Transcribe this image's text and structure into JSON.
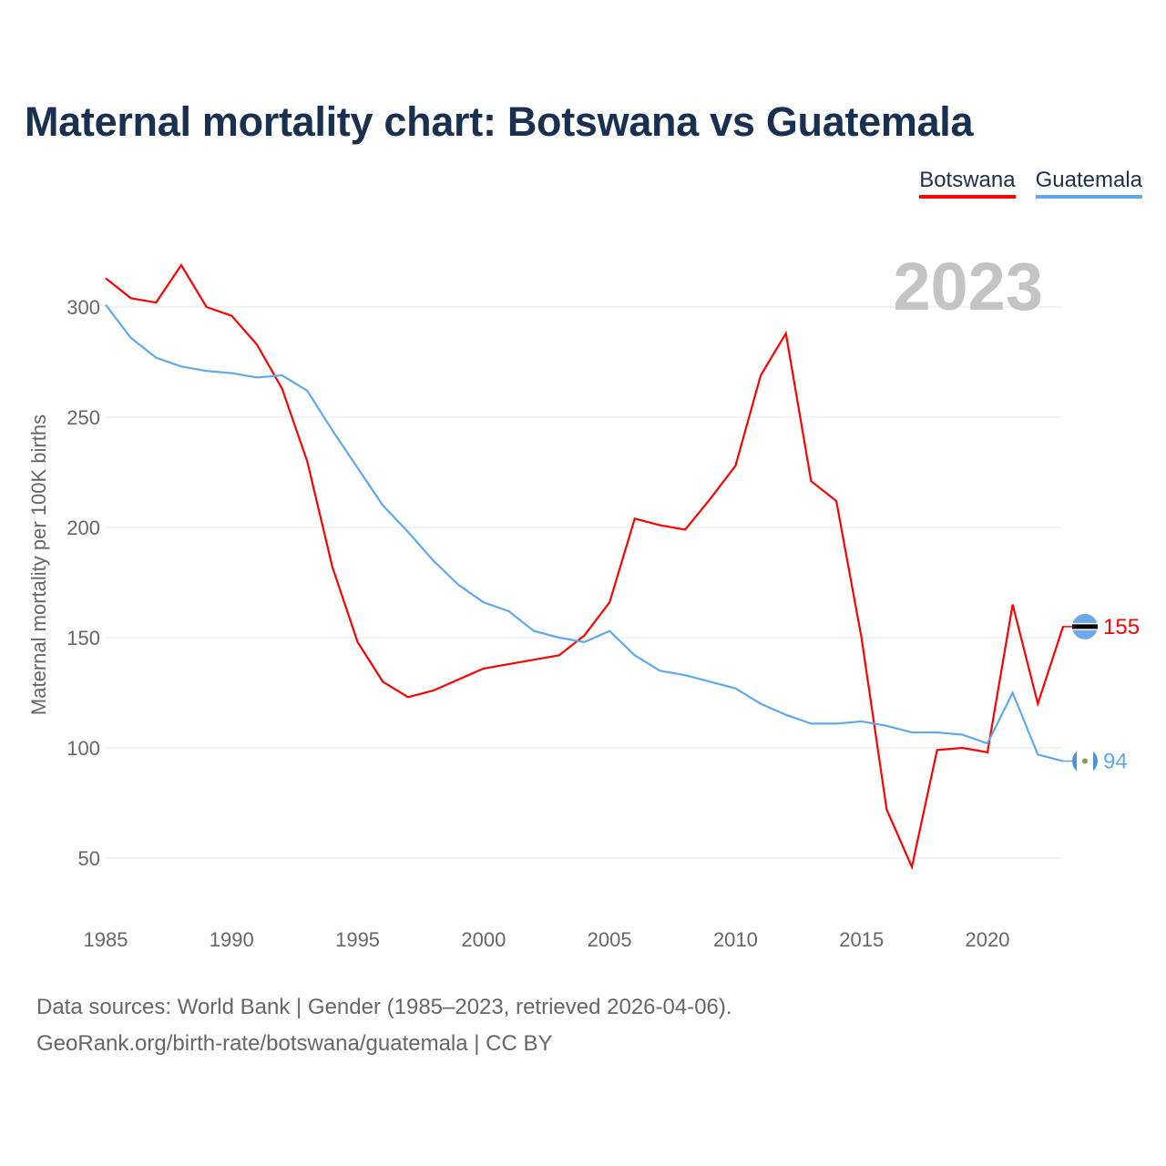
{
  "title": "Maternal mortality chart: Botswana vs Guatemala",
  "legend": [
    "Botswana",
    "Guatemala"
  ],
  "year_label": "2023",
  "footer": {
    "line1": "Data sources: World Bank | Gender (1985–2023, retrieved 2026-04-06).",
    "line2": "GeoRank.org/birth-rate/botswana/guatemala | CC BY"
  },
  "colors": {
    "Botswana": "#ff0000",
    "Guatemala": "#5fa8ee",
    "title": "#1a3050"
  },
  "chart_data": {
    "type": "line",
    "title": "Maternal mortality chart: Botswana vs Guatemala",
    "xlabel": "",
    "ylabel": "Maternal mortality per 100K births",
    "xlim": [
      1985,
      2023
    ],
    "ylim": [
      30,
      320
    ],
    "xticks": [
      1985,
      1990,
      1995,
      2000,
      2005,
      2010,
      2015,
      2020
    ],
    "yticks": [
      50,
      100,
      150,
      200,
      250,
      300
    ],
    "grid": true,
    "legend_position": "top-right",
    "x": [
      1985,
      1986,
      1987,
      1988,
      1989,
      1990,
      1991,
      1992,
      1993,
      1994,
      1995,
      1996,
      1997,
      1998,
      1999,
      2000,
      2001,
      2002,
      2003,
      2004,
      2005,
      2006,
      2007,
      2008,
      2009,
      2010,
      2011,
      2012,
      2013,
      2014,
      2015,
      2016,
      2017,
      2018,
      2019,
      2020,
      2021,
      2022,
      2023
    ],
    "series": [
      {
        "name": "Botswana",
        "end_label": "155",
        "values": [
          313,
          304,
          302,
          319,
          300,
          296,
          283,
          263,
          230,
          182,
          148,
          130,
          123,
          126,
          131,
          136,
          138,
          140,
          142,
          151,
          166,
          204,
          201,
          199,
          213,
          228,
          269,
          288,
          221,
          212,
          150,
          72,
          46,
          99,
          100,
          98,
          165,
          120,
          155
        ]
      },
      {
        "name": "Guatemala",
        "end_label": "94",
        "values": [
          301,
          286,
          277,
          273,
          271,
          270,
          268,
          269,
          262,
          244,
          227,
          210,
          198,
          185,
          174,
          166,
          162,
          153,
          150,
          148,
          153,
          142,
          135,
          133,
          130,
          127,
          120,
          115,
          111,
          111,
          112,
          110,
          107,
          107,
          106,
          102,
          125,
          97,
          94
        ]
      }
    ]
  }
}
